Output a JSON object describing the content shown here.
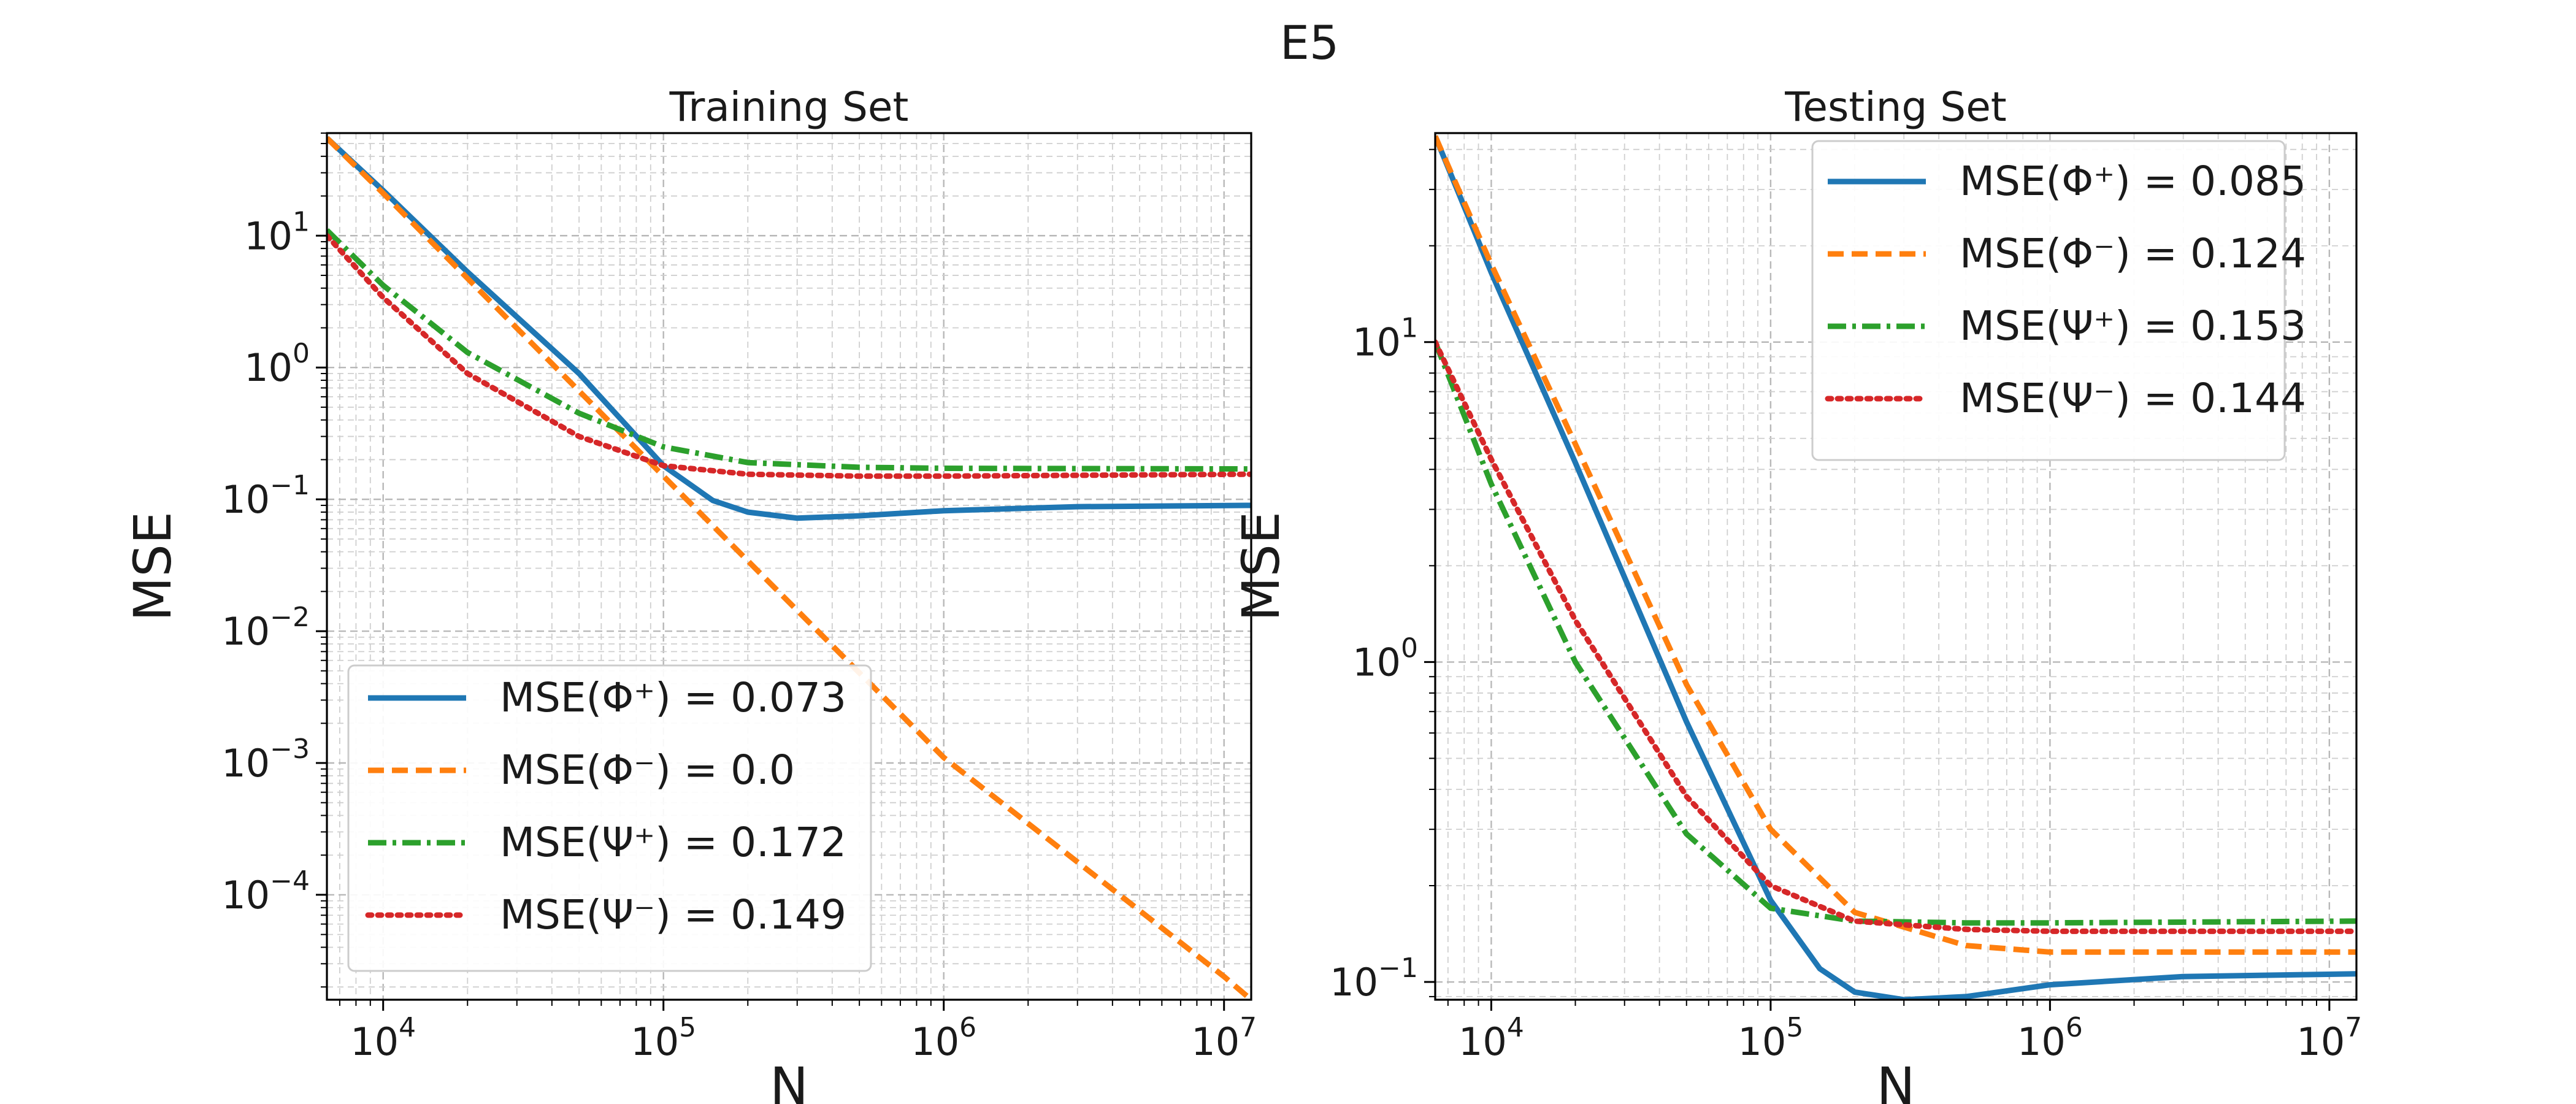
{
  "figure_title": "E5",
  "colors": {
    "phi_plus": "#1f77b4",
    "phi_minus": "#ff7f0e",
    "psi_plus": "#2ca02c",
    "psi_minus": "#d62728"
  },
  "chart_data": [
    {
      "type": "line",
      "title": "Training Set",
      "xlabel": "N",
      "ylabel": "MSE",
      "x_scale": "log",
      "y_scale": "log",
      "xlim": [
        6300,
        12500000
      ],
      "ylim": [
        1.6e-05,
        60
      ],
      "x_ticks": [
        {
          "base": "10",
          "exp": "4",
          "value": 10000
        },
        {
          "base": "10",
          "exp": "5",
          "value": 100000
        },
        {
          "base": "10",
          "exp": "6",
          "value": 1000000
        },
        {
          "base": "10",
          "exp": "7",
          "value": 10000000
        }
      ],
      "y_ticks": [
        {
          "base": "10",
          "exp": "−4",
          "value": 0.0001
        },
        {
          "base": "10",
          "exp": "−3",
          "value": 0.001
        },
        {
          "base": "10",
          "exp": "−2",
          "value": 0.01
        },
        {
          "base": "10",
          "exp": "−1",
          "value": 0.1
        },
        {
          "base": "10",
          "exp": "0",
          "value": 1
        },
        {
          "base": "10",
          "exp": "1",
          "value": 10
        }
      ],
      "grid": true,
      "legend_position": "lower-left",
      "series": [
        {
          "name": "MSE(Φ⁺) = 0.073",
          "style": "solid",
          "color": "#1f77b4",
          "x": [
            6300,
            10000,
            20000,
            50000,
            100000,
            150000,
            200000,
            300000,
            500000,
            1000000,
            3000000,
            12500000
          ],
          "y": [
            55,
            22,
            5.3,
            0.9,
            0.18,
            0.098,
            0.08,
            0.072,
            0.075,
            0.082,
            0.088,
            0.09
          ]
        },
        {
          "name": "MSE(Φ⁻) = 0.0",
          "style": "dashed",
          "color": "#ff7f0e",
          "x": [
            6300,
            10000,
            100000,
            1000000,
            10000000,
            12500000
          ],
          "y": [
            55,
            21,
            0.15,
            0.0011,
            2.4e-05,
            1.6e-05
          ]
        },
        {
          "name": "MSE(Ψ⁺) = 0.172",
          "style": "dashdot",
          "color": "#2ca02c",
          "x": [
            6300,
            10000,
            20000,
            50000,
            100000,
            200000,
            500000,
            1000000,
            12500000
          ],
          "y": [
            11,
            4.2,
            1.3,
            0.45,
            0.25,
            0.19,
            0.175,
            0.172,
            0.17
          ]
        },
        {
          "name": "MSE(Ψ⁻) = 0.149",
          "style": "dotted",
          "color": "#d62728",
          "x": [
            6300,
            10000,
            20000,
            50000,
            100000,
            200000,
            500000,
            1000000,
            12500000
          ],
          "y": [
            10,
            3.4,
            0.9,
            0.3,
            0.18,
            0.155,
            0.15,
            0.15,
            0.155
          ]
        }
      ]
    },
    {
      "type": "line",
      "title": "Testing Set",
      "xlabel": "N",
      "ylabel": "MSE",
      "x_scale": "log",
      "y_scale": "log",
      "xlim": [
        6300,
        12500000
      ],
      "ylim": [
        0.088,
        45
      ],
      "x_ticks": [
        {
          "base": "10",
          "exp": "4",
          "value": 10000
        },
        {
          "base": "10",
          "exp": "5",
          "value": 100000
        },
        {
          "base": "10",
          "exp": "6",
          "value": 1000000
        },
        {
          "base": "10",
          "exp": "7",
          "value": 10000000
        }
      ],
      "y_ticks": [
        {
          "base": "10",
          "exp": "−1",
          "value": 0.1
        },
        {
          "base": "10",
          "exp": "0",
          "value": 1
        },
        {
          "base": "10",
          "exp": "1",
          "value": 10
        }
      ],
      "grid": true,
      "legend_position": "top-right",
      "series": [
        {
          "name": "MSE(Φ⁺) = 0.085",
          "style": "solid",
          "color": "#1f77b4",
          "x": [
            6300,
            10000,
            20000,
            50000,
            100000,
            150000,
            200000,
            300000,
            500000,
            1000000,
            3000000,
            12500000
          ],
          "y": [
            44,
            16.5,
            4.2,
            0.65,
            0.18,
            0.11,
            0.093,
            0.088,
            0.09,
            0.098,
            0.104,
            0.106
          ]
        },
        {
          "name": "MSE(Φ⁻) = 0.124",
          "style": "dashed",
          "color": "#ff7f0e",
          "x": [
            6300,
            10000,
            20000,
            50000,
            100000,
            200000,
            500000,
            1000000,
            12500000
          ],
          "y": [
            44,
            17.5,
            4.8,
            0.85,
            0.3,
            0.165,
            0.13,
            0.124,
            0.124
          ]
        },
        {
          "name": "MSE(Ψ⁺) = 0.153",
          "style": "dashdot",
          "color": "#2ca02c",
          "x": [
            6300,
            10000,
            20000,
            50000,
            100000,
            200000,
            500000,
            1000000,
            12500000
          ],
          "y": [
            10,
            3.6,
            1.0,
            0.29,
            0.17,
            0.155,
            0.153,
            0.153,
            0.155
          ]
        },
        {
          "name": "MSE(Ψ⁻) = 0.144",
          "style": "dotted",
          "color": "#d62728",
          "x": [
            6300,
            10000,
            20000,
            50000,
            100000,
            200000,
            500000,
            1000000,
            12500000
          ],
          "y": [
            10,
            4.3,
            1.35,
            0.38,
            0.2,
            0.155,
            0.146,
            0.144,
            0.144
          ]
        }
      ]
    }
  ]
}
